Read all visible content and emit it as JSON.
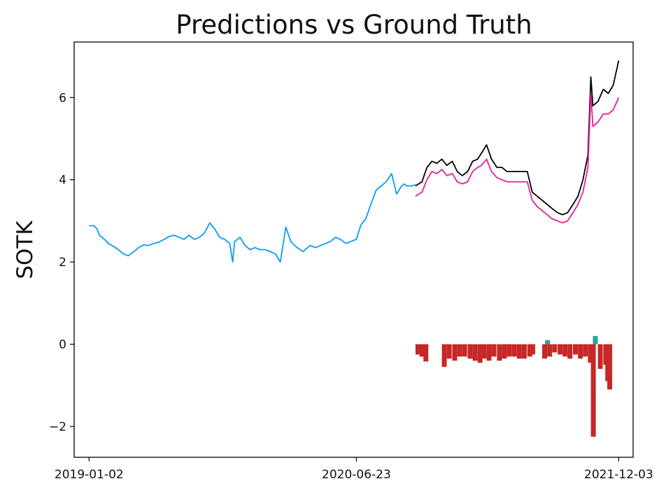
{
  "chart_data": {
    "type": "line",
    "title": "Predictions vs Ground Truth",
    "xlabel": "",
    "ylabel": "SOTK",
    "xlim": [
      "2018-12-03",
      "2022-01-01"
    ],
    "ylim": [
      -2.75,
      7.35
    ],
    "x_ticks": [
      "2019-01-02",
      "2020-06-23",
      "2021-12-03"
    ],
    "y_ticks": [
      -2,
      0,
      2,
      4,
      6
    ],
    "y_tick_labels": [
      "−2",
      "0",
      "2",
      "4",
      "6"
    ],
    "grid": false,
    "legend": "none",
    "colors": {
      "history": "#0b9cf0",
      "actual": "#000000",
      "predicted": "#e91e9a",
      "error_negative": "#c62828",
      "error_positive": "#26a69a"
    },
    "series": [
      {
        "role": "history",
        "x": [
          "2019-01-02",
          "2019-01-12",
          "2019-01-18",
          "2019-01-23",
          "2019-02-02",
          "2019-02-10",
          "2019-02-20",
          "2019-03-02",
          "2019-03-12",
          "2019-03-22",
          "2019-04-02",
          "2019-04-12",
          "2019-04-22",
          "2019-05-02",
          "2019-05-12",
          "2019-05-22",
          "2019-06-02",
          "2019-06-12",
          "2019-06-22",
          "2019-07-02",
          "2019-07-12",
          "2019-07-22",
          "2019-08-02",
          "2019-08-12",
          "2019-08-22",
          "2019-09-02",
          "2019-09-12",
          "2019-09-22",
          "2019-10-02",
          "2019-10-12",
          "2019-10-18",
          "2019-10-22",
          "2019-11-02",
          "2019-11-12",
          "2019-11-22",
          "2019-12-02",
          "2019-12-12",
          "2019-12-22",
          "2020-01-02",
          "2020-01-12",
          "2020-01-22",
          "2020-02-02",
          "2020-02-12",
          "2020-02-20",
          "2020-02-25",
          "2020-03-02",
          "2020-03-08",
          "2020-03-12",
          "2020-03-22",
          "2020-04-02",
          "2020-04-12",
          "2020-04-22",
          "2020-05-02",
          "2020-05-12",
          "2020-05-22",
          "2020-06-02",
          "2020-06-12",
          "2020-06-23",
          "2020-07-02",
          "2020-07-12",
          "2020-07-22",
          "2020-08-02",
          "2020-08-12",
          "2020-08-22",
          "2020-09-02",
          "2020-09-12",
          "2020-09-22",
          "2020-09-28",
          "2020-10-02",
          "2020-10-12",
          "2020-10-20"
        ],
        "y": [
          2.88,
          2.88,
          2.8,
          2.65,
          2.55,
          2.45,
          2.38,
          2.3,
          2.2,
          2.15,
          2.25,
          2.35,
          2.42,
          2.4,
          2.45,
          2.48,
          2.55,
          2.62,
          2.65,
          2.6,
          2.55,
          2.65,
          2.55,
          2.6,
          2.7,
          2.95,
          2.8,
          2.6,
          2.55,
          2.45,
          2.0,
          2.5,
          2.6,
          2.4,
          2.3,
          2.35,
          2.3,
          2.3,
          2.25,
          2.2,
          2.0,
          2.85,
          2.5,
          2.4,
          2.35,
          2.3,
          2.25,
          2.3,
          2.4,
          2.35,
          2.4,
          2.45,
          2.5,
          2.6,
          2.55,
          2.45,
          2.5,
          2.55,
          2.9,
          3.05,
          3.4,
          3.75,
          3.85,
          3.95,
          4.15,
          3.65,
          3.85,
          3.9,
          3.85,
          3.85,
          3.88
        ]
      },
      {
        "role": "actual",
        "x": [
          "2020-10-20",
          "2020-11-02",
          "2020-11-12",
          "2020-11-22",
          "2020-12-02",
          "2020-12-12",
          "2020-12-22",
          "2021-01-02",
          "2021-01-12",
          "2021-01-22",
          "2021-02-02",
          "2021-02-12",
          "2021-02-22",
          "2021-03-02",
          "2021-03-12",
          "2021-03-22",
          "2021-04-02",
          "2021-04-12",
          "2021-04-22",
          "2021-05-02",
          "2021-05-12",
          "2021-05-22",
          "2021-06-02",
          "2021-06-12",
          "2021-06-22",
          "2021-07-02",
          "2021-07-12",
          "2021-07-22",
          "2021-08-02",
          "2021-08-12",
          "2021-08-22",
          "2021-09-02",
          "2021-09-12",
          "2021-09-22",
          "2021-10-02",
          "2021-10-08",
          "2021-10-12",
          "2021-10-22",
          "2021-11-02",
          "2021-11-12",
          "2021-11-22",
          "2021-12-03"
        ],
        "y": [
          3.85,
          3.95,
          4.3,
          4.45,
          4.4,
          4.5,
          4.35,
          4.45,
          4.2,
          4.1,
          4.2,
          4.45,
          4.5,
          4.65,
          4.85,
          4.5,
          4.3,
          4.3,
          4.2,
          4.2,
          4.2,
          4.2,
          4.2,
          3.7,
          3.6,
          3.5,
          3.4,
          3.3,
          3.2,
          3.15,
          3.2,
          3.4,
          3.6,
          4.0,
          4.6,
          6.5,
          5.8,
          5.9,
          6.2,
          6.1,
          6.3,
          6.9
        ]
      },
      {
        "role": "predicted",
        "x": [
          "2020-10-20",
          "2020-11-02",
          "2020-11-12",
          "2020-11-22",
          "2020-12-02",
          "2020-12-12",
          "2020-12-22",
          "2021-01-02",
          "2021-01-12",
          "2021-01-22",
          "2021-02-02",
          "2021-02-12",
          "2021-02-22",
          "2021-03-02",
          "2021-03-12",
          "2021-03-22",
          "2021-04-02",
          "2021-04-12",
          "2021-04-22",
          "2021-05-02",
          "2021-05-12",
          "2021-05-22",
          "2021-06-02",
          "2021-06-12",
          "2021-06-22",
          "2021-07-02",
          "2021-07-12",
          "2021-07-22",
          "2021-08-02",
          "2021-08-12",
          "2021-08-22",
          "2021-09-02",
          "2021-09-12",
          "2021-09-22",
          "2021-10-02",
          "2021-10-08",
          "2021-10-12",
          "2021-10-22",
          "2021-11-02",
          "2021-11-12",
          "2021-11-22",
          "2021-12-03"
        ],
        "y": [
          3.6,
          3.7,
          4.0,
          4.2,
          4.15,
          4.25,
          4.1,
          4.15,
          3.95,
          3.9,
          3.95,
          4.2,
          4.3,
          4.35,
          4.5,
          4.2,
          4.05,
          4.0,
          3.95,
          3.95,
          3.95,
          3.95,
          3.95,
          3.5,
          3.35,
          3.25,
          3.15,
          3.05,
          3.0,
          2.95,
          3.0,
          3.2,
          3.4,
          3.7,
          4.3,
          6.1,
          5.3,
          5.4,
          5.6,
          5.6,
          5.7,
          6.0
        ]
      }
    ],
    "error_bars": {
      "x": [
        "2020-10-20",
        "2020-10-28",
        "2020-11-02",
        "2020-11-05",
        "2020-12-12",
        "2020-12-22",
        "2021-01-02",
        "2021-01-12",
        "2021-01-22",
        "2021-02-02",
        "2021-02-12",
        "2021-02-22",
        "2021-03-02",
        "2021-03-12",
        "2021-03-22",
        "2021-04-02",
        "2021-04-12",
        "2021-04-22",
        "2021-05-02",
        "2021-05-12",
        "2021-05-22",
        "2021-06-02",
        "2021-06-08",
        "2021-07-02",
        "2021-07-08",
        "2021-07-12",
        "2021-07-22",
        "2021-08-02",
        "2021-08-12",
        "2021-08-22",
        "2021-09-02",
        "2021-09-12",
        "2021-09-22",
        "2021-10-02",
        "2021-10-08",
        "2021-10-12",
        "2021-10-22",
        "2021-11-02",
        "2021-11-06",
        "2021-11-10"
      ],
      "y": [
        -0.25,
        -0.3,
        -0.3,
        -0.42,
        -0.55,
        -0.35,
        -0.4,
        -0.3,
        -0.3,
        -0.35,
        -0.4,
        -0.45,
        -0.35,
        -0.4,
        -0.3,
        -0.4,
        -0.35,
        -0.3,
        -0.3,
        -0.35,
        -0.35,
        -0.3,
        -0.25,
        -0.35,
        0.1,
        -0.3,
        -0.2,
        -0.25,
        -0.3,
        -0.35,
        -0.25,
        -0.35,
        -0.3,
        -0.45,
        -2.25,
        0.2,
        -0.6,
        -0.5,
        -0.9,
        -1.1
      ]
    }
  }
}
